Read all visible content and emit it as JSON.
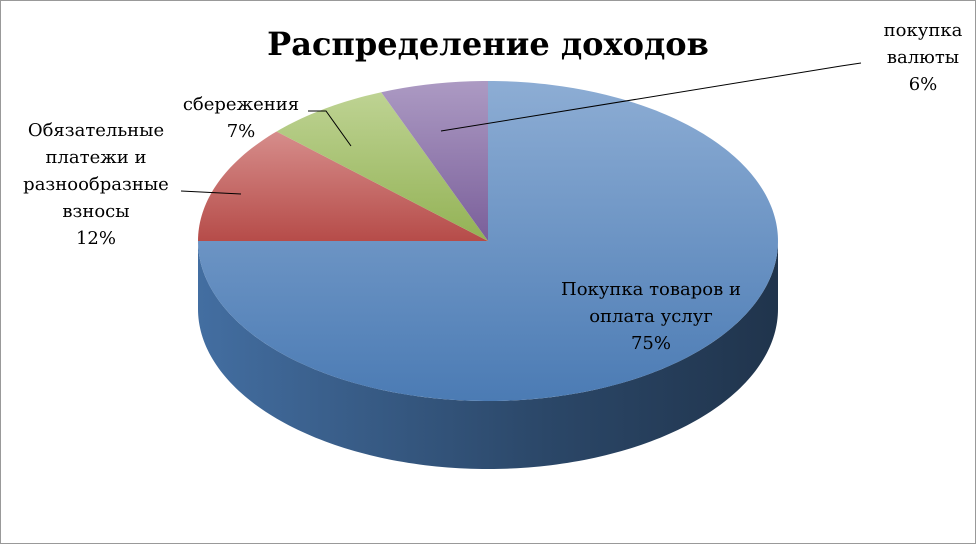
{
  "chart_data": {
    "type": "pie",
    "title": "Распределение доходов",
    "categories": [
      "Покупка товаров и оплата услуг",
      "Обязательные платежи и разнообразные взносы",
      "сбережения",
      "покупка валюты"
    ],
    "values": [
      75,
      12,
      7,
      6
    ],
    "value_labels": [
      "75%",
      "12%",
      "7%",
      "6%"
    ],
    "colors": [
      "#4f81bd",
      "#c0504d",
      "#9bbb59",
      "#8064a2"
    ]
  }
}
